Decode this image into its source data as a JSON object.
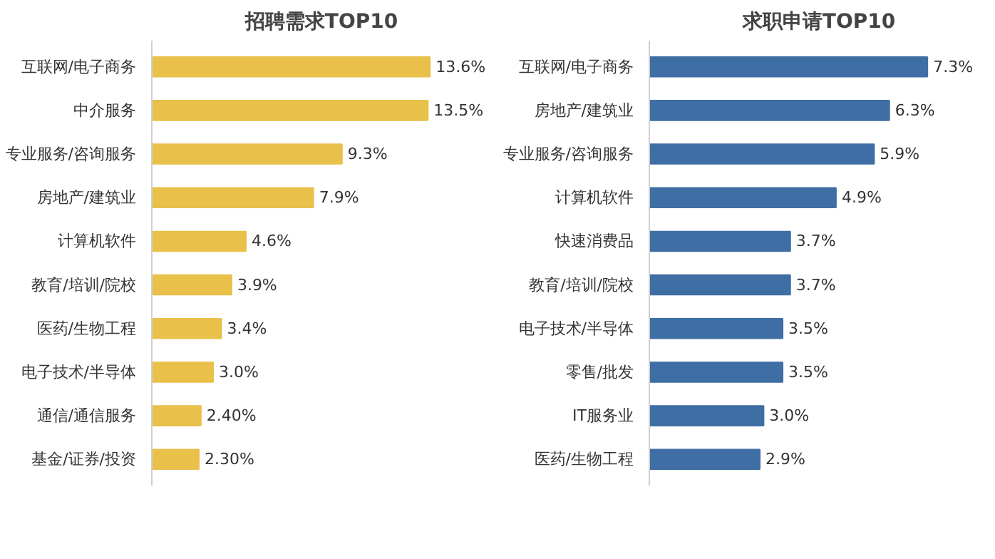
{
  "chart_data": [
    {
      "type": "bar",
      "orientation": "horizontal",
      "title": "招聘需求TOP10",
      "categories": [
        "互联网/电子商务",
        "中介服务",
        "专业服务/咨询服务",
        "房地产/建筑业",
        "计算机软件",
        "教育/培训/院校",
        "医药/生物工程",
        "电子技术/半导体",
        "通信/通信服务",
        "基金/证券/投资"
      ],
      "values": [
        13.6,
        13.5,
        9.3,
        7.9,
        4.6,
        3.9,
        3.4,
        3.0,
        2.4,
        2.3
      ],
      "value_labels": [
        "13.6%",
        "13.5%",
        "9.3%",
        "7.9%",
        "4.6%",
        "3.9%",
        "3.4%",
        "3.0%",
        "2.40%",
        "2.30%"
      ],
      "color": "#e8c04a"
    },
    {
      "type": "bar",
      "orientation": "horizontal",
      "title": "求职申请TOP10",
      "categories": [
        "互联网/电子商务",
        "房地产/建筑业",
        "专业服务/咨询服务",
        "计算机软件",
        "快速消费品",
        "教育/培训/院校",
        "电子技术/半导体",
        "零售/批发",
        "IT服务业",
        "医药/生物工程"
      ],
      "values": [
        7.3,
        6.3,
        5.9,
        4.9,
        3.7,
        3.7,
        3.5,
        3.5,
        3.0,
        2.9
      ],
      "value_labels": [
        "7.3%",
        "6.3%",
        "5.9%",
        "4.9%",
        "3.7%",
        "3.7%",
        "3.5%",
        "3.5%",
        "3.0%",
        "2.9%"
      ],
      "color": "#3f6ea5"
    }
  ]
}
